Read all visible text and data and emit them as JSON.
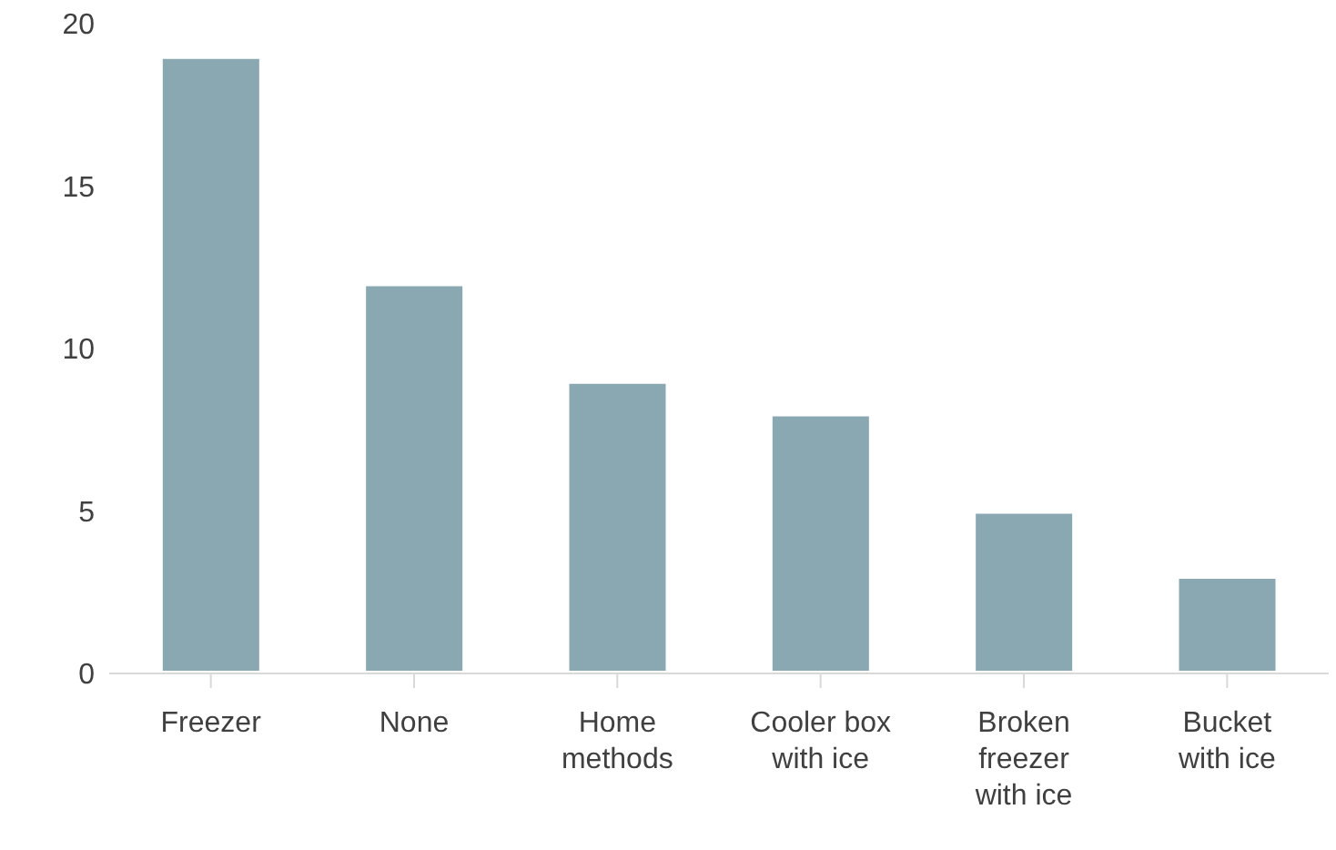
{
  "chart_data": {
    "type": "bar",
    "categories": [
      "Freezer",
      "None",
      "Home methods",
      "Cooler box with ice",
      "Broken freezer with ice",
      "Bucket with ice"
    ],
    "values": [
      19,
      12,
      9,
      8,
      5,
      3
    ],
    "color": "#8aa8b2",
    "ylim": [
      0,
      20
    ],
    "yticks": [
      0,
      5,
      10,
      15,
      20
    ],
    "grid": false
  }
}
